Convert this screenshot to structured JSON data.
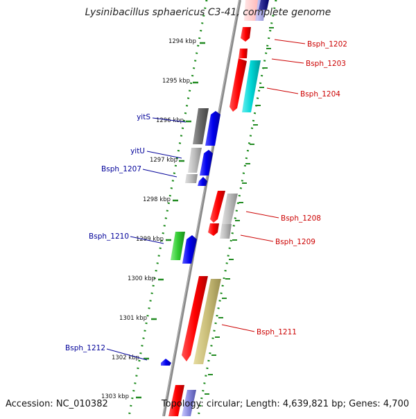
{
  "title": "Lysinibacillus sphaericus C3-41, complete genome",
  "footer": {
    "accession": "Accession: NC_010382",
    "summary": "Topology: circular; Length: 4,639,821 bp; Genes: 4,700"
  },
  "ticks": [
    {
      "label": "1294 kbp"
    },
    {
      "label": "1295 kbp"
    },
    {
      "label": "1296 kbp"
    },
    {
      "label": "1297 kbp"
    },
    {
      "label": "1298 kbp"
    },
    {
      "label": "1299 kbp"
    },
    {
      "label": "1300 kbp"
    },
    {
      "label": "1301 kbp"
    },
    {
      "label": "1302 kbp"
    },
    {
      "label": "1303 kbp"
    }
  ],
  "gene_labels": [
    {
      "name": "Bsph_1202",
      "color": "#cc0000"
    },
    {
      "name": "Bsph_1203",
      "color": "#cc0000"
    },
    {
      "name": "Bsph_1204",
      "color": "#cc0000"
    },
    {
      "name": "yitS",
      "color": "#000099"
    },
    {
      "name": "yitU",
      "color": "#000099"
    },
    {
      "name": "Bsph_1207",
      "color": "#000099"
    },
    {
      "name": "Bsph_1208",
      "color": "#cc0000"
    },
    {
      "name": "Bsph_1209",
      "color": "#cc0000"
    },
    {
      "name": "Bsph_1210",
      "color": "#000099"
    },
    {
      "name": "Bsph_1211",
      "color": "#cc0000"
    },
    {
      "name": "Bsph_1212",
      "color": "#000099"
    }
  ],
  "colors": {
    "forward_cds": "#ff0000",
    "reverse_cds": "#0000ee",
    "backbone": "#888888",
    "tick": "#228b22",
    "dot_ring": "#1a8a1a"
  }
}
